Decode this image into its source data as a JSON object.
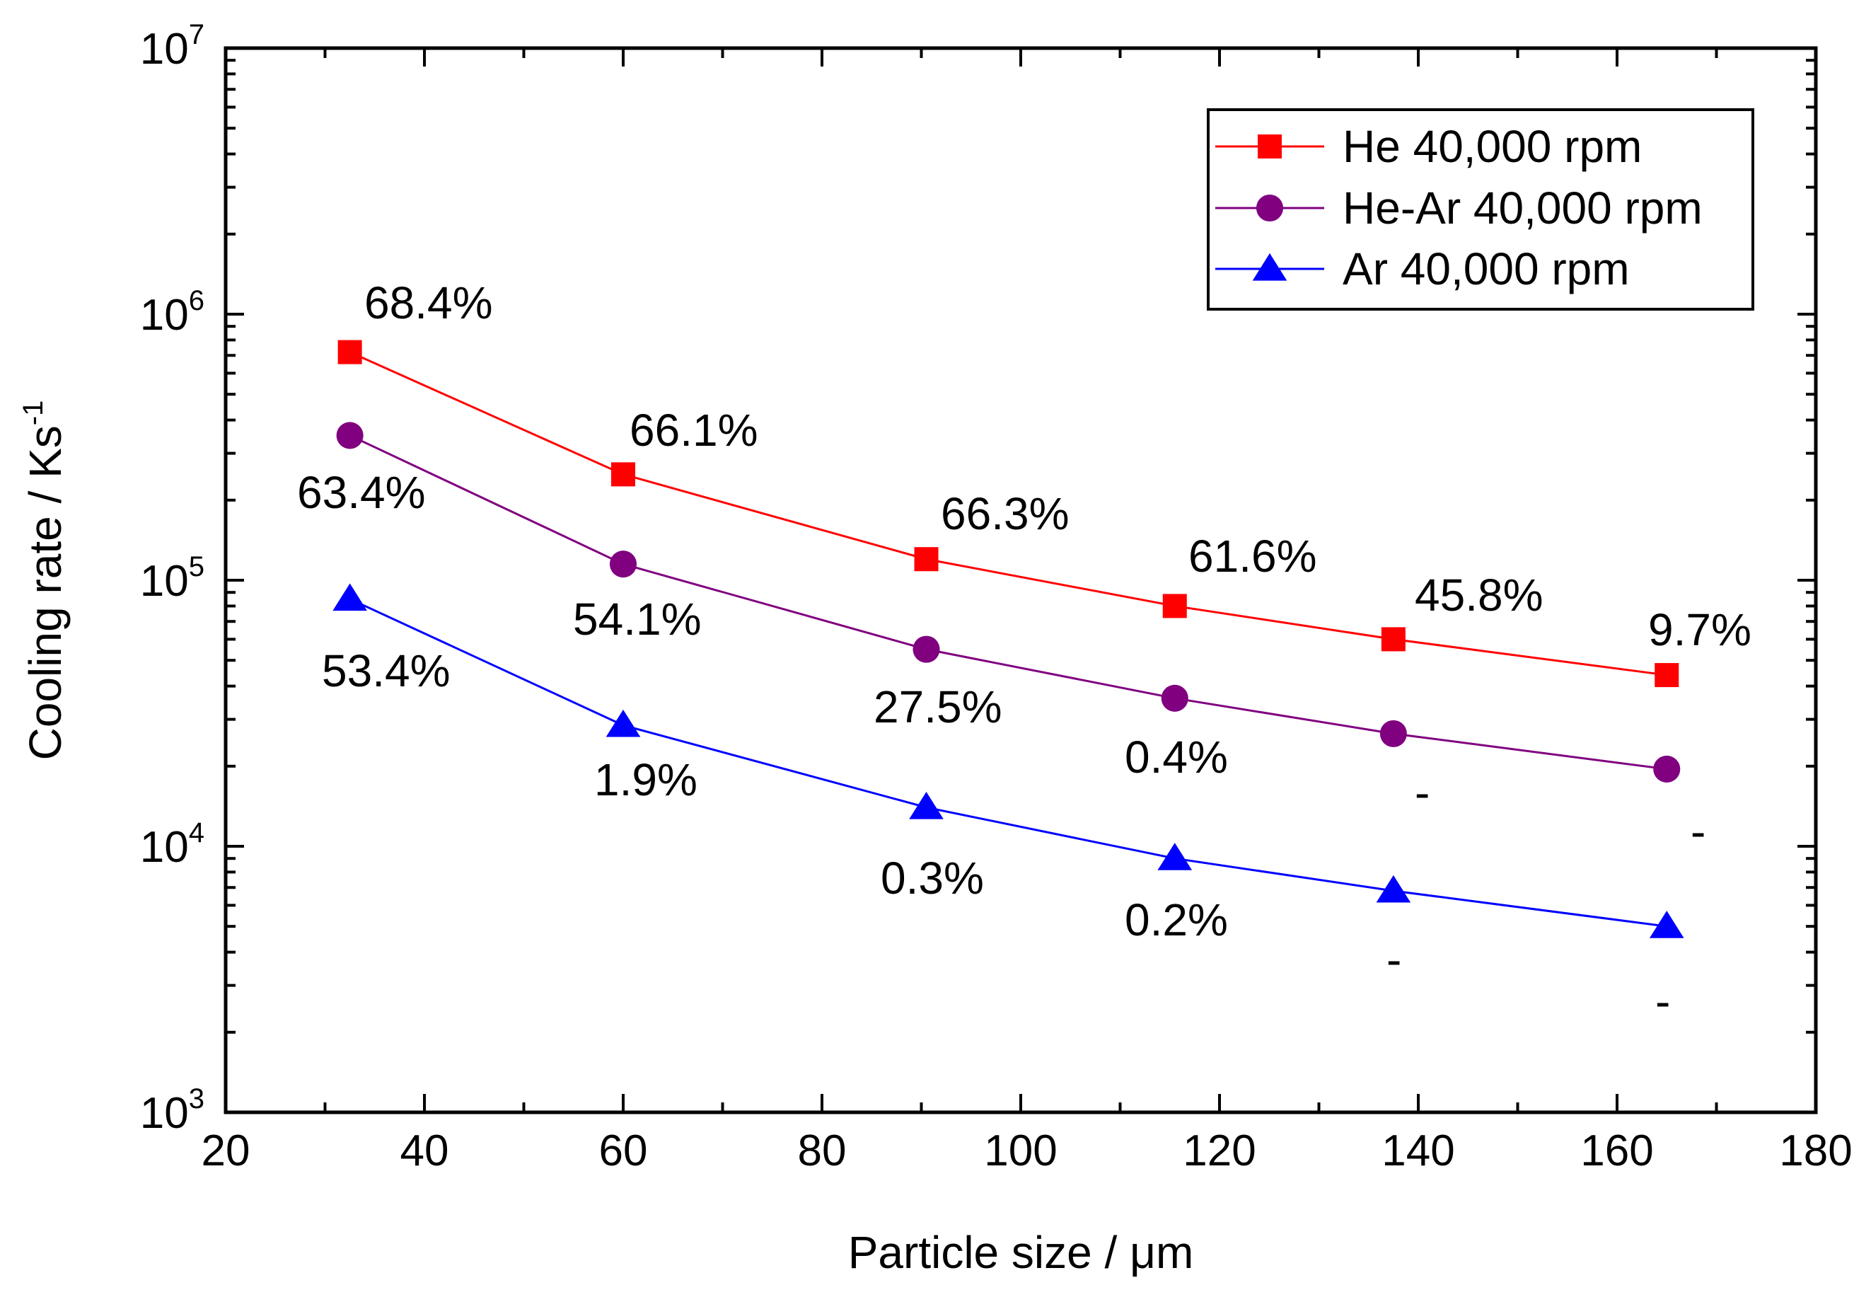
{
  "chart_data": {
    "type": "line",
    "title": "",
    "xlabel": "Particle size / μm",
    "ylabel": "Cooling rate / Ks",
    "ylabel_sup": "-1",
    "xlim": [
      20,
      180
    ],
    "ylim": [
      1000,
      10000000
    ],
    "yscale": "log",
    "grid": false,
    "legend_position": "top-right",
    "x_ticks": [
      20,
      40,
      60,
      80,
      100,
      120,
      140,
      160,
      180
    ],
    "y_ticks": [
      {
        "value": 1000,
        "base": "10",
        "exp": "3"
      },
      {
        "value": 10000,
        "base": "10",
        "exp": "4"
      },
      {
        "value": 100000,
        "base": "10",
        "exp": "5"
      },
      {
        "value": 1000000,
        "base": "10",
        "exp": "6"
      },
      {
        "value": 10000000,
        "base": "10",
        "exp": "7"
      }
    ],
    "x": [
      32.5,
      60,
      90.5,
      115.5,
      137.5,
      165
    ],
    "series": [
      {
        "name": "He 40,000 rpm",
        "color": "#ff0000",
        "marker": "square",
        "values": [
          720000,
          250000,
          120000,
          80000,
          60000,
          44000
        ],
        "labels": [
          "68.4%",
          "66.1%",
          "66.3%",
          "61.6%",
          "45.8%",
          "9.7%"
        ]
      },
      {
        "name": "He-Ar 40,000 rpm",
        "color": "#800080",
        "marker": "circle",
        "values": [
          350000,
          115000,
          55000,
          36000,
          26500,
          19500
        ],
        "labels": [
          "63.4%",
          "54.1%",
          "27.5%",
          "0.4%",
          "-",
          "-"
        ]
      },
      {
        "name": "Ar 40,000 rpm",
        "color": "#0000ff",
        "marker": "triangle",
        "values": [
          85000,
          28500,
          14000,
          9000,
          6800,
          5000
        ],
        "labels": [
          "53.4%",
          "1.9%",
          "0.3%",
          "0.2%",
          "-",
          "-"
        ]
      }
    ]
  }
}
